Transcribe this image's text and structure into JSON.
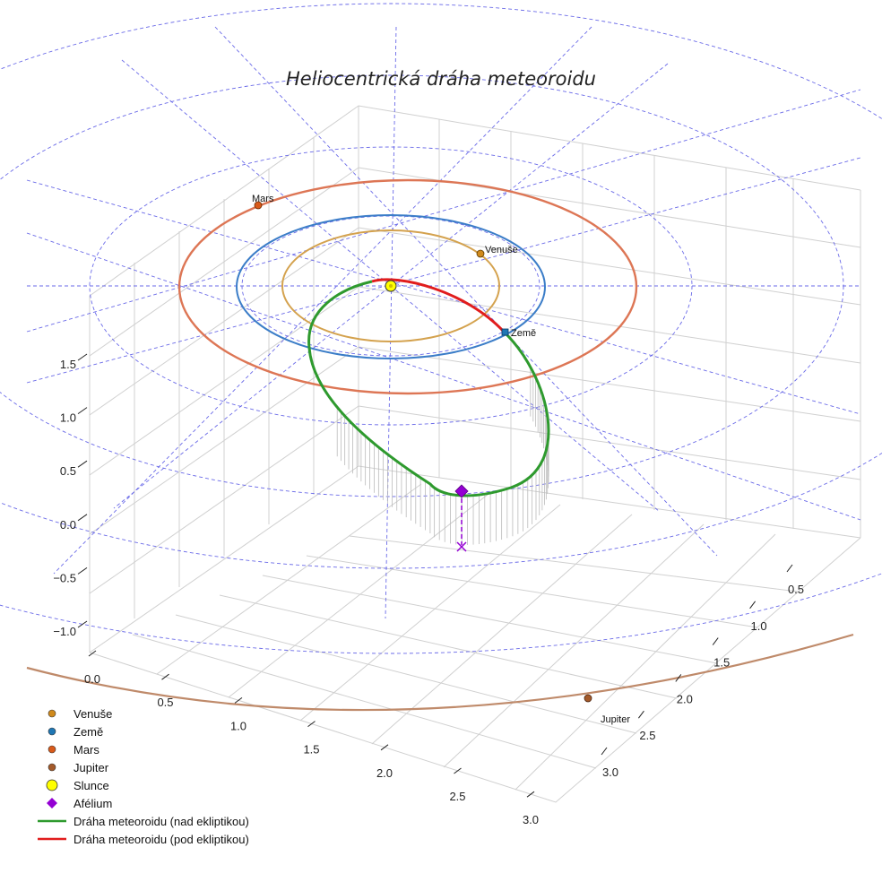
{
  "chart_data": {
    "type": "3d-orbit",
    "title": "Heliocentrická dráha meteoroidu",
    "axes": {
      "x": {
        "ticks": [
          "0.0",
          "0.5",
          "1.0",
          "1.5",
          "2.0",
          "2.5",
          "3.0"
        ]
      },
      "y": {
        "ticks": [
          "0.5",
          "1.0",
          "1.5",
          "2.0",
          "2.5",
          "3.0"
        ]
      },
      "z": {
        "ticks": [
          "−1.0",
          "−0.5",
          "0.0",
          "0.5",
          "1.0",
          "1.5"
        ]
      }
    },
    "grid": true,
    "polar_grid": {
      "rings_au": [
        1,
        2,
        3,
        4,
        5.2
      ],
      "spokes": 12
    },
    "planets": [
      {
        "name": "Venuše",
        "color": "#d08a1c",
        "orbit_color": "#d4a24e",
        "a_au": 0.72,
        "label": "Venuše"
      },
      {
        "name": "Země",
        "color": "#1f77b4",
        "orbit_color": "#3b7dc8",
        "a_au": 1.0,
        "label": "Země"
      },
      {
        "name": "Mars",
        "color": "#d95a1a",
        "orbit_color": "#dd7655",
        "a_au": 1.52,
        "label": "Mars"
      },
      {
        "name": "Jupiter",
        "color": "#a45a2a",
        "orbit_color": "#bf8a6a",
        "a_au": 5.2,
        "label": "Jupiter"
      }
    ],
    "sun": {
      "name": "Slunce",
      "color": "#ffff00"
    },
    "meteoroid_orbit": {
      "perihelion_au": 0.05,
      "aphelion_au": 2.0,
      "segments": [
        {
          "name": "Dráha meteoroidu (nad ekliptikou)",
          "color": "#2e9a2e"
        },
        {
          "name": "Dráha meteoroidu (pod ekliptikou)",
          "color": "#e11d1d"
        }
      ]
    },
    "aphelion": {
      "name": "Afélium",
      "color": "#9400d3"
    }
  },
  "legend": {
    "items": [
      {
        "label": "Venuše",
        "kind": "dot",
        "color": "#d08a1c"
      },
      {
        "label": "Země",
        "kind": "dot",
        "color": "#1f77b4"
      },
      {
        "label": "Mars",
        "kind": "dot",
        "color": "#d95a1a"
      },
      {
        "label": "Jupiter",
        "kind": "dot",
        "color": "#a45a2a"
      },
      {
        "label": "Slunce",
        "kind": "sun",
        "color": "#ffff00"
      },
      {
        "label": "Afélium",
        "kind": "diamond",
        "color": "#9400d3"
      },
      {
        "label": "Dráha meteoroidu (nad ekliptikou)",
        "kind": "line",
        "color": "#2e9a2e"
      },
      {
        "label": "Dráha meteoroidu (pod ekliptikou)",
        "kind": "line",
        "color": "#e11d1d"
      }
    ]
  }
}
